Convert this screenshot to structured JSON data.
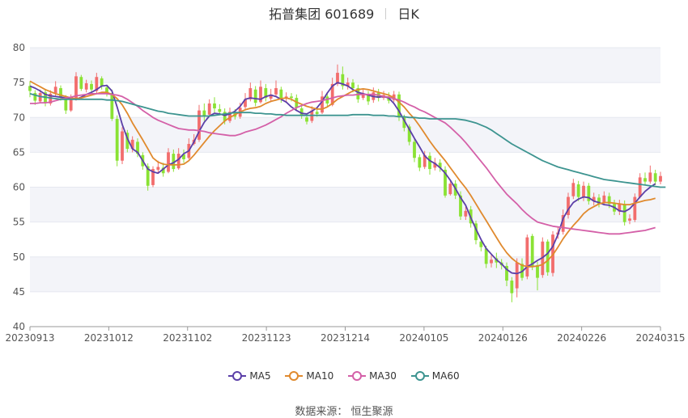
{
  "title": {
    "name": "拓普集团 601689",
    "period": "日K"
  },
  "legend": [
    {
      "label": "MA5",
      "color": "#5b3fa8"
    },
    {
      "label": "MA10",
      "color": "#e08a2e"
    },
    {
      "label": "MA30",
      "color": "#d460a8"
    },
    {
      "label": "MA60",
      "color": "#3d9490"
    }
  ],
  "source": "数据来源： 恒生聚源",
  "colors": {
    "up": "#f26d6d",
    "down": "#8ae234"
  },
  "chart_data": {
    "type": "candlestick",
    "ylim": [
      40,
      80
    ],
    "yticks": [
      40,
      45,
      50,
      55,
      60,
      65,
      70,
      75,
      80
    ],
    "xtick_labels": [
      "20230913",
      "20231012",
      "20231102",
      "20231123",
      "20231214",
      "20240105",
      "20240126",
      "20240226",
      "20240315"
    ],
    "candles": [
      [
        74.5,
        73.8,
        75.2,
        72.9
      ],
      [
        73.5,
        72.4,
        73.9,
        71.8
      ],
      [
        72.3,
        73.5,
        74.0,
        72.0
      ],
      [
        73.6,
        72.1,
        74.1,
        71.6
      ],
      [
        72.0,
        73.4,
        73.9,
        71.7
      ],
      [
        73.5,
        74.4,
        75.2,
        73.0
      ],
      [
        74.2,
        72.9,
        74.6,
        72.4
      ],
      [
        72.8,
        71.0,
        73.2,
        70.5
      ],
      [
        71.0,
        72.6,
        73.3,
        70.8
      ],
      [
        72.6,
        75.9,
        76.5,
        72.4
      ],
      [
        75.8,
        74.1,
        76.1,
        73.8
      ],
      [
        74.0,
        74.9,
        75.4,
        73.6
      ],
      [
        74.8,
        74.0,
        75.3,
        73.5
      ],
      [
        73.8,
        75.8,
        76.4,
        73.5
      ],
      [
        75.6,
        74.5,
        75.9,
        74.0
      ],
      [
        74.3,
        73.6,
        74.7,
        73.0
      ],
      [
        73.5,
        69.8,
        74.0,
        69.5
      ],
      [
        69.8,
        63.8,
        70.3,
        63.0
      ],
      [
        63.8,
        68.0,
        68.6,
        63.3
      ],
      [
        67.8,
        65.5,
        68.2,
        65.0
      ],
      [
        65.5,
        66.8,
        67.3,
        65.0
      ],
      [
        66.5,
        64.8,
        67.0,
        64.3
      ],
      [
        64.6,
        63.0,
        65.0,
        62.5
      ],
      [
        63.0,
        60.2,
        63.4,
        59.5
      ],
      [
        60.3,
        62.6,
        63.0,
        60.0
      ],
      [
        62.5,
        62.9,
        63.8,
        62.0
      ],
      [
        62.8,
        62.0,
        63.5,
        61.5
      ],
      [
        62.2,
        65.0,
        65.6,
        62.0
      ],
      [
        64.8,
        62.6,
        65.4,
        62.2
      ],
      [
        62.7,
        64.8,
        65.6,
        62.5
      ],
      [
        64.7,
        64.0,
        65.4,
        63.5
      ],
      [
        64.2,
        66.2,
        67.0,
        64.0
      ],
      [
        66.2,
        66.8,
        67.6,
        66.0
      ],
      [
        66.8,
        71.0,
        71.8,
        66.5
      ],
      [
        71.0,
        70.2,
        72.0,
        69.5
      ],
      [
        70.4,
        72.0,
        72.6,
        70.1
      ],
      [
        72.0,
        71.3,
        72.9,
        70.7
      ],
      [
        71.2,
        70.8,
        71.9,
        70.3
      ],
      [
        70.8,
        69.5,
        71.3,
        69.0
      ],
      [
        69.5,
        70.8,
        71.4,
        69.2
      ],
      [
        70.6,
        70.1,
        71.2,
        69.7
      ],
      [
        70.1,
        71.4,
        72.1,
        69.8
      ],
      [
        71.5,
        72.6,
        73.5,
        71.2
      ],
      [
        72.6,
        74.2,
        75.0,
        72.3
      ],
      [
        74.0,
        72.1,
        74.5,
        71.6
      ],
      [
        72.2,
        74.4,
        75.3,
        72.0
      ],
      [
        74.2,
        72.8,
        74.8,
        72.3
      ],
      [
        72.7,
        73.3,
        74.1,
        72.2
      ],
      [
        73.3,
        74.2,
        75.3,
        73.0
      ],
      [
        74.0,
        72.6,
        74.4,
        72.1
      ],
      [
        72.7,
        73.0,
        73.6,
        72.2
      ],
      [
        73.0,
        72.8,
        73.5,
        72.3
      ],
      [
        72.8,
        71.4,
        73.3,
        71.0
      ],
      [
        71.3,
        70.2,
        71.8,
        69.8
      ],
      [
        70.0,
        69.4,
        70.5,
        69.0
      ],
      [
        69.5,
        71.0,
        71.6,
        69.2
      ],
      [
        70.8,
        70.5,
        71.4,
        70.1
      ],
      [
        70.7,
        73.0,
        73.8,
        70.5
      ],
      [
        73.0,
        72.0,
        73.6,
        71.5
      ],
      [
        71.8,
        74.8,
        75.7,
        71.6
      ],
      [
        74.8,
        76.4,
        77.6,
        74.5
      ],
      [
        76.2,
        74.5,
        77.3,
        74.0
      ],
      [
        74.5,
        75.0,
        75.7,
        74.0
      ],
      [
        75.0,
        74.2,
        75.5,
        73.6
      ],
      [
        74.2,
        72.6,
        74.7,
        72.1
      ],
      [
        72.8,
        73.4,
        74.2,
        72.5
      ],
      [
        73.2,
        72.3,
        73.8,
        71.8
      ],
      [
        72.5,
        73.6,
        74.3,
        72.1
      ],
      [
        73.5,
        72.8,
        74.1,
        72.3
      ],
      [
        72.8,
        73.2,
        73.8,
        72.5
      ],
      [
        73.0,
        72.4,
        73.6,
        72.0
      ],
      [
        72.5,
        73.3,
        73.8,
        72.2
      ],
      [
        73.3,
        70.0,
        73.7,
        69.5
      ],
      [
        70.0,
        68.5,
        70.4,
        68.0
      ],
      [
        68.7,
        66.5,
        69.0,
        66.0
      ],
      [
        66.5,
        64.2,
        66.9,
        63.6
      ],
      [
        64.3,
        62.8,
        64.7,
        62.3
      ],
      [
        62.9,
        64.6,
        65.2,
        62.6
      ],
      [
        64.5,
        62.6,
        65.0,
        61.8
      ],
      [
        62.8,
        63.5,
        64.2,
        62.4
      ],
      [
        63.5,
        62.8,
        64.0,
        62.2
      ],
      [
        62.5,
        58.8,
        63.0,
        58.5
      ],
      [
        59.0,
        60.5,
        61.0,
        58.8
      ],
      [
        60.5,
        58.8,
        61.0,
        58.3
      ],
      [
        58.8,
        55.8,
        59.4,
        55.3
      ],
      [
        55.8,
        56.6,
        57.2,
        55.3
      ],
      [
        56.8,
        54.8,
        57.3,
        54.2
      ],
      [
        54.8,
        52.4,
        55.2,
        51.8
      ],
      [
        52.2,
        51.4,
        52.6,
        50.8
      ],
      [
        51.2,
        49.0,
        51.6,
        48.4
      ],
      [
        49.1,
        49.6,
        50.3,
        48.5
      ],
      [
        49.8,
        49.2,
        50.6,
        48.4
      ],
      [
        49.2,
        48.8,
        49.7,
        48.2
      ],
      [
        48.7,
        46.6,
        49.2,
        45.8
      ],
      [
        46.6,
        44.8,
        47.1,
        43.5
      ],
      [
        45.5,
        49.2,
        49.8,
        44.2
      ],
      [
        49.0,
        47.0,
        49.8,
        46.6
      ],
      [
        47.2,
        52.8,
        53.2,
        46.8
      ],
      [
        53.0,
        48.6,
        53.3,
        48.1
      ],
      [
        48.8,
        47.0,
        49.3,
        45.2
      ],
      [
        47.4,
        52.2,
        52.8,
        47.0
      ],
      [
        52.2,
        47.8,
        52.5,
        47.3
      ],
      [
        47.7,
        53.2,
        53.7,
        47.2
      ],
      [
        53.2,
        53.5,
        54.2,
        52.6
      ],
      [
        53.6,
        56.0,
        56.8,
        53.2
      ],
      [
        56.0,
        58.6,
        59.2,
        55.5
      ],
      [
        58.7,
        60.6,
        61.2,
        58.3
      ],
      [
        60.4,
        58.6,
        60.9,
        58.0
      ],
      [
        58.5,
        60.2,
        60.8,
        58.0
      ],
      [
        60.2,
        58.0,
        60.6,
        57.5
      ],
      [
        58.0,
        58.6,
        59.2,
        57.4
      ],
      [
        58.5,
        57.6,
        59.0,
        57.1
      ],
      [
        57.8,
        58.8,
        59.4,
        57.4
      ],
      [
        58.7,
        57.6,
        59.2,
        57.0
      ],
      [
        57.6,
        56.5,
        58.2,
        56.0
      ],
      [
        56.5,
        57.6,
        58.2,
        56.0
      ],
      [
        57.6,
        55.0,
        58.1,
        54.5
      ],
      [
        55.2,
        55.5,
        56.1,
        54.7
      ],
      [
        55.3,
        58.6,
        59.1,
        55.0
      ],
      [
        58.6,
        61.4,
        62.0,
        58.4
      ],
      [
        61.3,
        60.8,
        62.1,
        60.3
      ],
      [
        60.8,
        62.1,
        63.1,
        60.5
      ],
      [
        62.0,
        60.8,
        62.5,
        60.3
      ],
      [
        60.8,
        61.6,
        62.2,
        60.4
      ]
    ],
    "series": [
      {
        "name": "MA5",
        "values": [
          74.5,
          74.2,
          73.8,
          73.3,
          73.1,
          73.0,
          72.9,
          72.8,
          72.7,
          72.6,
          72.9,
          73.3,
          73.6,
          74.0,
          74.5,
          74.6,
          73.8,
          71.5,
          69.0,
          67.0,
          65.5,
          65.0,
          63.8,
          62.6,
          62.2,
          62.0,
          62.6,
          63.2,
          63.5,
          64.0,
          64.8,
          65.2,
          66.5,
          68.0,
          69.3,
          70.2,
          70.6,
          70.5,
          70.3,
          70.5,
          70.9,
          71.6,
          72.6,
          72.8,
          72.7,
          72.6,
          73.0,
          73.2,
          73.0,
          72.6,
          72.2,
          71.5,
          71.0,
          70.6,
          70.5,
          70.9,
          71.4,
          72.3,
          73.5,
          74.5,
          75.0,
          74.8,
          74.5,
          74.0,
          73.6,
          73.4,
          73.2,
          73.0,
          72.9,
          73.0,
          72.8,
          72.0,
          70.9,
          69.6,
          68.3,
          67.0,
          65.8,
          64.5,
          63.8,
          63.4,
          62.8,
          62.0,
          61.0,
          59.8,
          58.5,
          57.4,
          55.6,
          54.0,
          52.5,
          51.2,
          50.4,
          49.6,
          49.0,
          48.2,
          47.7,
          47.6,
          47.9,
          48.6,
          49.0,
          49.5,
          49.9,
          50.5,
          51.5,
          53.2,
          55.5,
          56.8,
          57.8,
          58.3,
          58.6,
          58.5,
          58.0,
          57.8,
          57.5,
          57.4,
          57.1,
          56.6,
          56.5,
          56.9,
          57.7,
          58.6,
          59.4,
          60.0,
          60.5
        ]
      },
      {
        "name": "MA10",
        "values": [
          75.2,
          74.8,
          74.4,
          74.0,
          73.7,
          73.4,
          73.2,
          73.0,
          72.8,
          72.7,
          72.8,
          73.0,
          73.2,
          73.4,
          73.6,
          73.6,
          73.3,
          72.7,
          71.8,
          70.6,
          69.2,
          68.0,
          66.8,
          65.5,
          64.2,
          63.6,
          63.3,
          63.2,
          63.2,
          63.2,
          63.3,
          63.8,
          64.6,
          65.5,
          66.4,
          67.3,
          68.1,
          68.8,
          69.5,
          70.0,
          70.4,
          70.8,
          71.1,
          71.3,
          71.4,
          71.6,
          72.0,
          72.3,
          72.5,
          72.7,
          72.8,
          72.6,
          72.2,
          71.9,
          71.6,
          71.4,
          71.2,
          71.2,
          71.5,
          72.0,
          72.6,
          73.0,
          73.4,
          73.8,
          74.0,
          74.1,
          74.0,
          73.8,
          73.6,
          73.4,
          73.2,
          72.8,
          72.2,
          71.5,
          70.6,
          69.8,
          68.8,
          67.7,
          66.6,
          65.6,
          64.7,
          63.8,
          62.8,
          61.8,
          60.8,
          59.9,
          58.8,
          57.6,
          56.4,
          55.2,
          54.0,
          52.8,
          51.6,
          50.6,
          49.8,
          49.2,
          48.8,
          48.6,
          48.6,
          48.7,
          48.9,
          49.5,
          50.3,
          51.4,
          52.6,
          53.6,
          54.5,
          55.3,
          56.2,
          56.8,
          57.2,
          57.6,
          57.8,
          57.8,
          57.7,
          57.6,
          57.5,
          57.5,
          57.7,
          57.9,
          58.1,
          58.2,
          58.4
        ]
      },
      {
        "name": "MA30",
        "values": [
          72.0,
          72.0,
          72.1,
          72.1,
          72.2,
          72.4,
          72.6,
          72.8,
          72.9,
          73.1,
          73.2,
          73.3,
          73.4,
          73.4,
          73.4,
          73.4,
          73.3,
          73.2,
          73.0,
          72.6,
          72.1,
          71.6,
          71.0,
          70.5,
          70.0,
          69.6,
          69.3,
          69.0,
          68.7,
          68.4,
          68.3,
          68.2,
          68.2,
          68.1,
          68.0,
          67.8,
          67.7,
          67.6,
          67.5,
          67.4,
          67.4,
          67.6,
          67.9,
          68.1,
          68.3,
          68.6,
          68.9,
          69.3,
          69.7,
          70.1,
          70.6,
          71.0,
          71.4,
          71.7,
          72.0,
          72.2,
          72.3,
          72.4,
          72.6,
          72.8,
          73.0,
          73.1,
          73.2,
          73.2,
          73.3,
          73.3,
          73.3,
          73.3,
          73.2,
          73.0,
          72.9,
          72.7,
          72.5,
          72.2,
          71.8,
          71.5,
          71.1,
          70.8,
          70.4,
          70.0,
          69.6,
          69.2,
          68.6,
          67.9,
          67.2,
          66.4,
          65.5,
          64.6,
          63.7,
          62.8,
          61.8,
          60.8,
          59.9,
          59.0,
          58.3,
          57.6,
          56.8,
          56.1,
          55.5,
          55.0,
          54.8,
          54.6,
          54.4,
          54.3,
          54.2,
          54.1,
          54.0,
          53.9,
          53.8,
          53.7,
          53.6,
          53.5,
          53.4,
          53.3,
          53.3,
          53.3,
          53.4,
          53.5,
          53.6,
          53.7,
          53.8,
          54.0,
          54.2
        ]
      },
      {
        "name": "MA60",
        "values": [
          73.4,
          73.2,
          73.0,
          72.9,
          72.8,
          72.7,
          72.6,
          72.6,
          72.6,
          72.6,
          72.6,
          72.6,
          72.6,
          72.6,
          72.6,
          72.5,
          72.5,
          72.4,
          72.3,
          72.1,
          71.9,
          71.7,
          71.5,
          71.3,
          71.1,
          70.9,
          70.8,
          70.6,
          70.5,
          70.4,
          70.3,
          70.2,
          70.2,
          70.2,
          70.2,
          70.2,
          70.3,
          70.4,
          70.5,
          70.6,
          70.7,
          70.7,
          70.7,
          70.7,
          70.6,
          70.6,
          70.5,
          70.5,
          70.4,
          70.4,
          70.3,
          70.3,
          70.3,
          70.3,
          70.3,
          70.3,
          70.3,
          70.3,
          70.3,
          70.3,
          70.3,
          70.3,
          70.3,
          70.4,
          70.4,
          70.4,
          70.4,
          70.3,
          70.3,
          70.3,
          70.2,
          70.2,
          70.1,
          70.1,
          70.0,
          70.0,
          69.9,
          69.9,
          69.8,
          69.8,
          69.8,
          69.8,
          69.8,
          69.8,
          69.7,
          69.6,
          69.4,
          69.2,
          68.9,
          68.6,
          68.2,
          67.7,
          67.2,
          66.7,
          66.2,
          65.8,
          65.4,
          65.0,
          64.6,
          64.2,
          63.8,
          63.5,
          63.2,
          62.9,
          62.7,
          62.5,
          62.3,
          62.1,
          61.9,
          61.7,
          61.5,
          61.3,
          61.1,
          61.0,
          60.9,
          60.8,
          60.7,
          60.6,
          60.5,
          60.4,
          60.3,
          60.2,
          60.1,
          60.0,
          60.0
        ]
      }
    ]
  }
}
